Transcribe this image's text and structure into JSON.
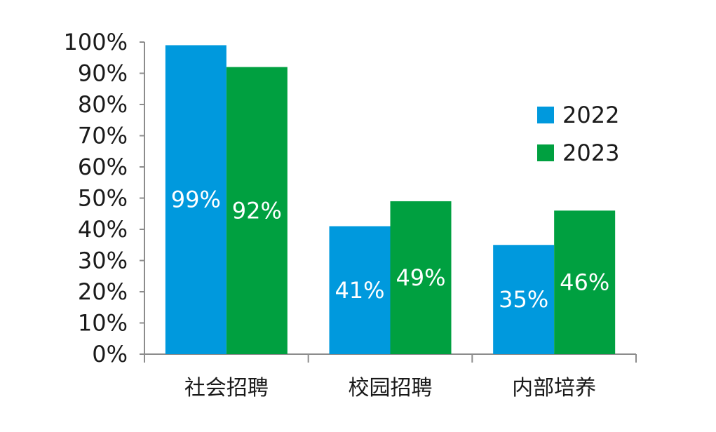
{
  "chart_data": {
    "type": "bar",
    "categories": [
      "社会招聘",
      "校园招聘",
      "内部培养"
    ],
    "series": [
      {
        "name": "2022",
        "values": [
          99,
          41,
          35
        ],
        "labels": [
          "99%",
          "41%",
          "35%"
        ],
        "color": "#0099dd"
      },
      {
        "name": "2023",
        "values": [
          92,
          49,
          46
        ],
        "labels": [
          "92%",
          "49%",
          "46%"
        ],
        "color": "#00a040"
      }
    ],
    "y_ticks": [
      "0%",
      "10%",
      "20%",
      "30%",
      "40%",
      "50%",
      "60%",
      "70%",
      "80%",
      "90%",
      "100%"
    ],
    "ylim": [
      0,
      100
    ],
    "unit": "%",
    "legend_position": "right",
    "grid": false,
    "title": "",
    "xlabel": "",
    "ylabel": ""
  }
}
